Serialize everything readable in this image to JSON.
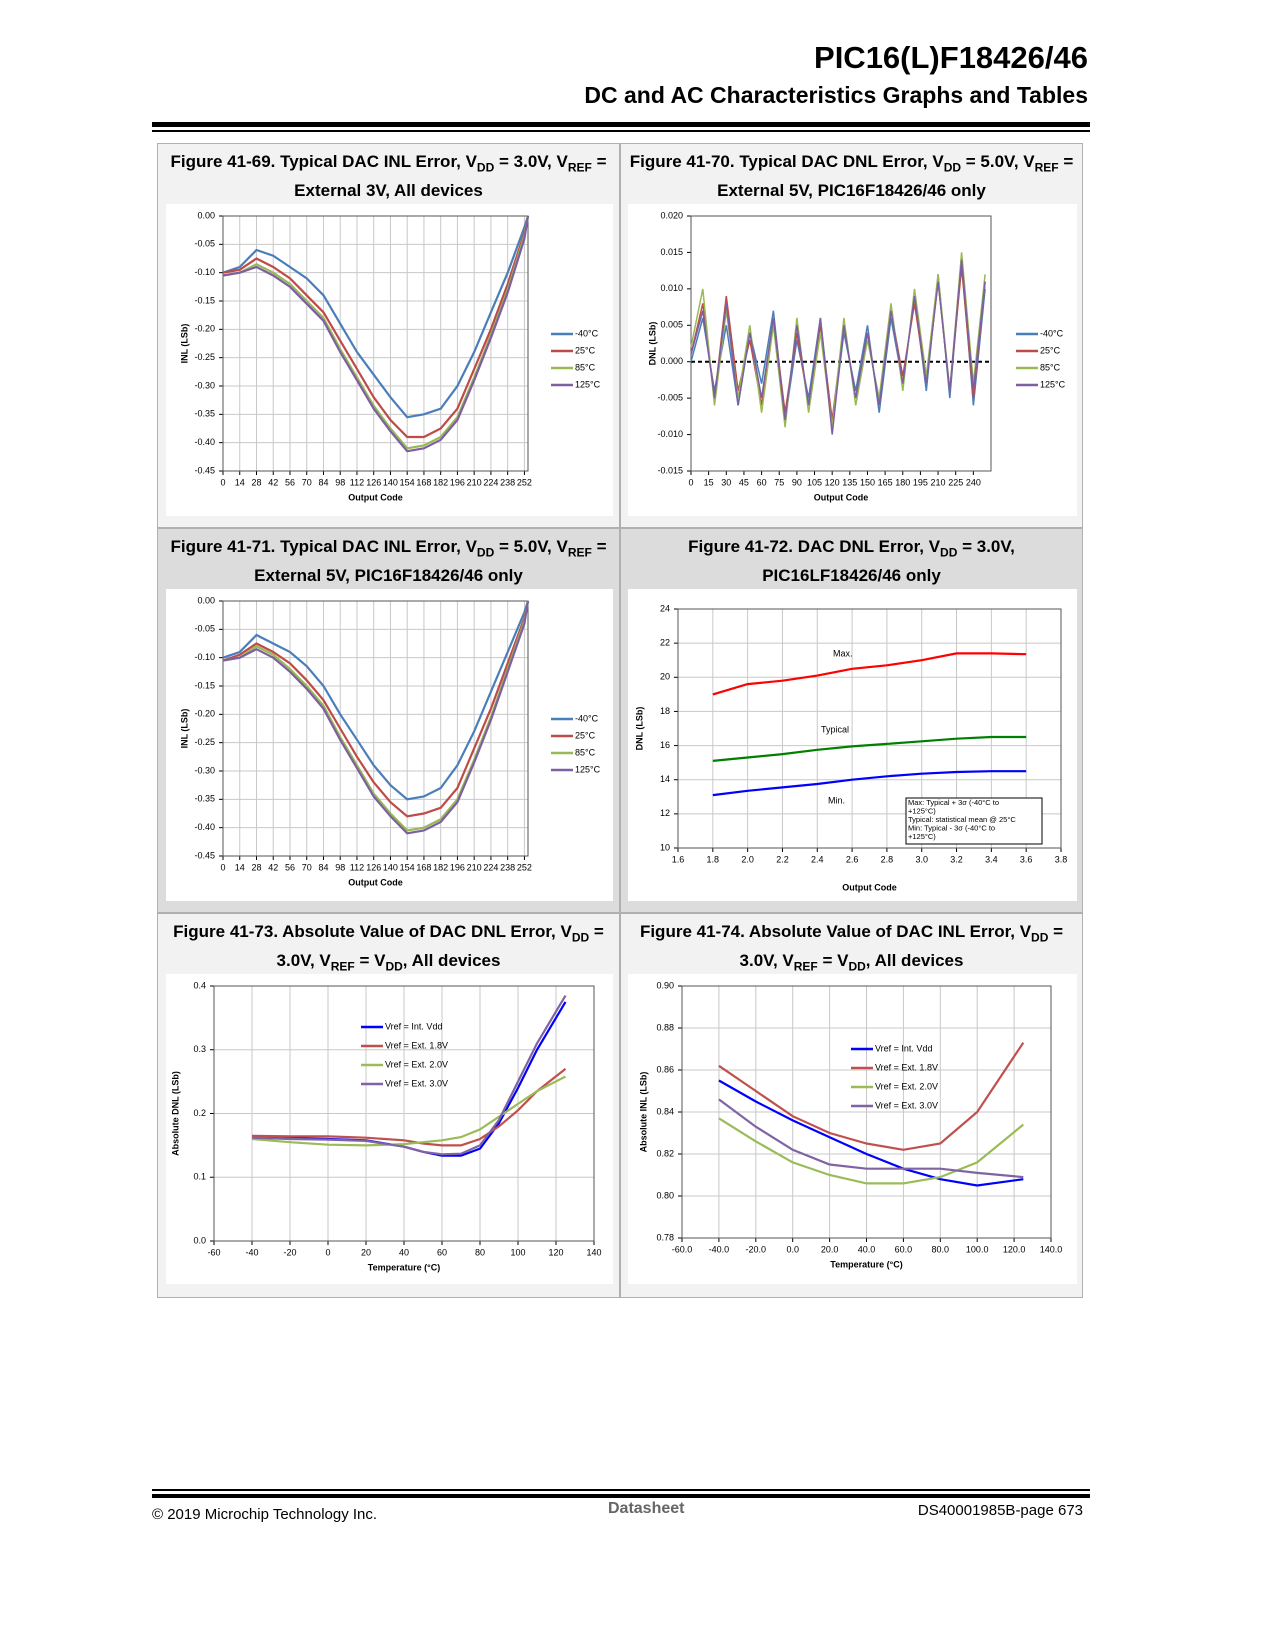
{
  "header": {
    "title": "PIC16(L)F18426/46",
    "subtitle": "DC and AC Characteristics Graphs and Tables"
  },
  "footer": {
    "copyright": "© 2019 Microchip Technology Inc.",
    "label": "Datasheet",
    "page": "DS40001985B-page 673"
  },
  "chart_data": [
    {
      "type": "line",
      "title": [
        "Figure 41-69. Typical DAC INL Error, V",
        "DD",
        " = 3.0V, V",
        "REF",
        " = External 3V, All devices"
      ],
      "x_label": "Output Code",
      "y_label": "INL (LSb)",
      "grid": true,
      "legend": "right",
      "xlim": [
        0,
        255
      ],
      "xticks": [
        0,
        14,
        28,
        42,
        56,
        70,
        84,
        98,
        112,
        126,
        140,
        154,
        168,
        182,
        196,
        210,
        224,
        238,
        252
      ],
      "ylim": [
        -0.45,
        0
      ],
      "yticks": [
        {
          "value": 0,
          "label": "0.00"
        },
        -0.05,
        {
          "value": -0.1,
          "label": "-0.10"
        },
        -0.15,
        {
          "value": -0.2,
          "label": "-0.20"
        },
        -0.25,
        {
          "value": -0.3,
          "label": "-0.30"
        },
        -0.35,
        {
          "value": -0.4,
          "label": "-0.40"
        },
        -0.45
      ],
      "x": [
        0,
        14,
        28,
        42,
        56,
        70,
        84,
        98,
        112,
        126,
        140,
        154,
        168,
        182,
        196,
        210,
        224,
        238,
        252,
        255
      ],
      "series": [
        {
          "name": "-40°C",
          "color": "#4a7ebb",
          "values": [
            -0.1,
            -0.09,
            -0.06,
            -0.07,
            -0.09,
            -0.11,
            -0.14,
            -0.19,
            -0.24,
            -0.28,
            -0.32,
            -0.355,
            -0.35,
            -0.34,
            -0.3,
            -0.24,
            -0.17,
            -0.1,
            -0.02,
            0
          ]
        },
        {
          "name": "25°C",
          "color": "#be4b48",
          "values": [
            -0.1,
            -0.095,
            -0.075,
            -0.09,
            -0.11,
            -0.14,
            -0.17,
            -0.22,
            -0.27,
            -0.32,
            -0.36,
            -0.39,
            -0.39,
            -0.375,
            -0.34,
            -0.27,
            -0.2,
            -0.12,
            -0.03,
            0
          ]
        },
        {
          "name": "85°C",
          "color": "#98b954",
          "values": [
            -0.105,
            -0.1,
            -0.085,
            -0.1,
            -0.12,
            -0.15,
            -0.18,
            -0.235,
            -0.285,
            -0.335,
            -0.375,
            -0.41,
            -0.405,
            -0.39,
            -0.355,
            -0.285,
            -0.21,
            -0.13,
            -0.035,
            0
          ]
        },
        {
          "name": "125°C",
          "color": "#7d60a0",
          "values": [
            -0.105,
            -0.1,
            -0.09,
            -0.105,
            -0.125,
            -0.155,
            -0.185,
            -0.24,
            -0.29,
            -0.34,
            -0.38,
            -0.415,
            -0.41,
            -0.395,
            -0.36,
            -0.29,
            -0.215,
            -0.135,
            -0.04,
            0
          ]
        }
      ]
    },
    {
      "type": "line",
      "title": [
        "Figure 41-70. Typical DAC DNL Error, V",
        "DD",
        " = 5.0V, V",
        "REF",
        " = External 5V, PIC16F18426/46 only"
      ],
      "x_label": "Output Code",
      "y_label": "DNL (LSb)",
      "grid": false,
      "legend": "right",
      "zero_line": true,
      "xlim": [
        0,
        255
      ],
      "xticks": [
        0,
        15,
        30,
        45,
        60,
        75,
        90,
        105,
        120,
        135,
        150,
        165,
        180,
        195,
        210,
        225,
        240
      ],
      "ylim": [
        -0.015,
        0.02
      ],
      "yticks": [
        -0.015,
        {
          "value": -0.01,
          "label": "-0.010"
        },
        -0.005,
        {
          "value": 0,
          "label": "0.000"
        },
        0.005,
        {
          "value": 0.01,
          "label": "0.010"
        },
        0.015,
        {
          "value": 0.02,
          "label": "0.020"
        }
      ],
      "x": [
        0,
        10,
        20,
        30,
        40,
        50,
        60,
        70,
        80,
        90,
        100,
        110,
        120,
        130,
        140,
        150,
        160,
        170,
        180,
        190,
        200,
        210,
        220,
        230,
        240,
        250
      ],
      "series": [
        {
          "name": "-40°C",
          "color": "#4a7ebb",
          "values": [
            0.0,
            0.006,
            -0.004,
            0.005,
            -0.006,
            0.004,
            -0.003,
            0.007,
            -0.008,
            0.003,
            -0.005,
            0.006,
            -0.009,
            0.004,
            -0.004,
            0.005,
            -0.007,
            0.006,
            -0.003,
            0.009,
            -0.004,
            0.012,
            -0.005,
            0.014,
            -0.006,
            0.01
          ]
        },
        {
          "name": "25°C",
          "color": "#be4b48",
          "values": [
            0.001,
            0.008,
            -0.005,
            0.009,
            -0.004,
            0.003,
            -0.006,
            0.006,
            -0.007,
            0.004,
            -0.006,
            0.005,
            -0.008,
            0.005,
            -0.005,
            0.004,
            -0.006,
            0.007,
            -0.002,
            0.008,
            -0.003,
            0.011,
            -0.004,
            0.013,
            -0.005,
            0.011
          ]
        },
        {
          "name": "85°C",
          "color": "#98b954",
          "values": [
            0.002,
            0.01,
            -0.006,
            0.007,
            -0.005,
            0.005,
            -0.007,
            0.005,
            -0.009,
            0.006,
            -0.007,
            0.004,
            -0.009,
            0.006,
            -0.006,
            0.003,
            -0.005,
            0.008,
            -0.004,
            0.01,
            -0.002,
            0.012,
            -0.004,
            0.015,
            -0.003,
            0.012
          ]
        },
        {
          "name": "125°C",
          "color": "#7d60a0",
          "values": [
            0.001,
            0.007,
            -0.005,
            0.008,
            -0.006,
            0.004,
            -0.005,
            0.006,
            -0.008,
            0.005,
            -0.006,
            0.006,
            -0.01,
            0.005,
            -0.005,
            0.004,
            -0.006,
            0.007,
            -0.003,
            0.009,
            -0.003,
            0.011,
            -0.004,
            0.014,
            -0.004,
            0.011
          ]
        }
      ]
    },
    {
      "type": "line",
      "title": [
        "Figure 41-71. Typical DAC INL Error, V",
        "DD",
        " = 5.0V, V",
        "REF",
        " = External 5V, PIC16F18426/46 only"
      ],
      "x_label": "Output Code",
      "y_label": "INL (LSb)",
      "grid": true,
      "legend": "right",
      "xlim": [
        0,
        255
      ],
      "xticks": [
        0,
        14,
        28,
        42,
        56,
        70,
        84,
        98,
        112,
        126,
        140,
        154,
        168,
        182,
        196,
        210,
        224,
        238,
        252
      ],
      "ylim": [
        -0.45,
        0
      ],
      "yticks": [
        {
          "value": 0,
          "label": "0.00"
        },
        -0.05,
        {
          "value": -0.1,
          "label": "-0.10"
        },
        -0.15,
        {
          "value": -0.2,
          "label": "-0.20"
        },
        -0.25,
        {
          "value": -0.3,
          "label": "-0.30"
        },
        -0.35,
        {
          "value": -0.4,
          "label": "-0.40"
        },
        -0.45
      ],
      "x": [
        0,
        14,
        28,
        42,
        56,
        70,
        84,
        98,
        112,
        126,
        140,
        154,
        168,
        182,
        196,
        210,
        224,
        238,
        252,
        255
      ],
      "series": [
        {
          "name": "-40°C",
          "color": "#4a7ebb",
          "values": [
            -0.1,
            -0.09,
            -0.06,
            -0.075,
            -0.09,
            -0.115,
            -0.15,
            -0.2,
            -0.245,
            -0.29,
            -0.325,
            -0.35,
            -0.345,
            -0.33,
            -0.29,
            -0.23,
            -0.16,
            -0.09,
            -0.02,
            0
          ]
        },
        {
          "name": "25°C",
          "color": "#be4b48",
          "values": [
            -0.105,
            -0.095,
            -0.075,
            -0.09,
            -0.11,
            -0.14,
            -0.175,
            -0.225,
            -0.275,
            -0.32,
            -0.355,
            -0.38,
            -0.375,
            -0.365,
            -0.33,
            -0.26,
            -0.19,
            -0.11,
            -0.03,
            0
          ]
        },
        {
          "name": "85°C",
          "color": "#98b954",
          "values": [
            -0.105,
            -0.1,
            -0.08,
            -0.095,
            -0.12,
            -0.15,
            -0.185,
            -0.24,
            -0.29,
            -0.34,
            -0.375,
            -0.405,
            -0.4,
            -0.385,
            -0.35,
            -0.28,
            -0.205,
            -0.12,
            -0.035,
            0
          ]
        },
        {
          "name": "125°C",
          "color": "#7d60a0",
          "values": [
            -0.105,
            -0.1,
            -0.085,
            -0.1,
            -0.125,
            -0.155,
            -0.19,
            -0.245,
            -0.295,
            -0.345,
            -0.38,
            -0.41,
            -0.405,
            -0.39,
            -0.355,
            -0.285,
            -0.21,
            -0.125,
            -0.04,
            0
          ]
        }
      ]
    },
    {
      "type": "line",
      "title": [
        "Figure 41-72. DAC DNL Error, V",
        "DD",
        " = 3.0V, PIC16LF18426/46 only"
      ],
      "x_label": "Output Code",
      "y_label": "DNL (LSb)",
      "grid": true,
      "legend": "none",
      "xlim": [
        1.6,
        3.8
      ],
      "xticks": [
        1.6,
        1.8,
        {
          "value": 2,
          "label": "2.0"
        },
        2.2,
        2.4,
        2.6,
        2.8,
        {
          "value": 3,
          "label": "3.0"
        },
        3.2,
        3.4,
        3.6,
        3.8
      ],
      "ylim": [
        10,
        24
      ],
      "yticks": [
        10,
        12,
        14,
        16,
        18,
        20,
        22,
        24
      ],
      "x": [
        1.8,
        2.0,
        2.2,
        2.4,
        2.6,
        2.8,
        3.0,
        3.2,
        3.4,
        3.6
      ],
      "annotations": [
        "Max.",
        "Typical",
        "Min."
      ],
      "note": [
        "Max: Typical + 3σ (-40°C to",
        "+125°C)",
        "Typical: statistical mean @ 25°C",
        "Min: Typical - 3σ (-40°C to",
        "+125°C)"
      ],
      "series": [
        {
          "name": "Max.",
          "color": "#ff0000",
          "values": [
            19.0,
            19.6,
            19.8,
            20.1,
            20.5,
            20.7,
            21.0,
            21.4,
            21.4,
            21.35
          ]
        },
        {
          "name": "Typical",
          "color": "#008000",
          "values": [
            15.1,
            15.3,
            15.5,
            15.75,
            15.95,
            16.1,
            16.25,
            16.4,
            16.5,
            16.5
          ]
        },
        {
          "name": "Min.",
          "color": "#0000ff",
          "values": [
            13.1,
            13.35,
            13.55,
            13.75,
            14.0,
            14.2,
            14.35,
            14.45,
            14.5,
            14.5
          ]
        }
      ]
    },
    {
      "type": "line",
      "title": [
        "Figure 41-73. Absolute Value of DAC DNL Error, V",
        "DD",
        " = 3.0V, V",
        "REF",
        " = V",
        "DD",
        ", All devices"
      ],
      "x_label": "Temperature (°C)",
      "y_label": "Absolute DNL (LSb)",
      "grid": true,
      "legend": "inside",
      "xlim": [
        -60,
        140
      ],
      "xticks": [
        -60,
        -40,
        -20,
        0,
        20,
        40,
        60,
        80,
        100,
        120,
        140
      ],
      "ylim": [
        0,
        0.4
      ],
      "yticks": [
        {
          "value": 0,
          "label": "0.0"
        },
        0.1,
        0.2,
        0.3,
        0.4
      ],
      "x": [
        -40,
        -20,
        0,
        20,
        40,
        50,
        60,
        70,
        80,
        90,
        100,
        110,
        125
      ],
      "series": [
        {
          "name": "Vref = Int. Vdd",
          "color": "#0000ff",
          "values": [
            0.162,
            0.161,
            0.16,
            0.158,
            0.148,
            0.14,
            0.134,
            0.134,
            0.145,
            0.185,
            0.24,
            0.3,
            0.375
          ]
        },
        {
          "name": "Vref = Ext. 1.8V",
          "color": "#c0504d",
          "values": [
            0.165,
            0.164,
            0.164,
            0.162,
            0.158,
            0.153,
            0.15,
            0.15,
            0.16,
            0.18,
            0.205,
            0.235,
            0.27
          ]
        },
        {
          "name": "Vref = Ext. 2.0V",
          "color": "#9bbb59",
          "values": [
            0.16,
            0.155,
            0.151,
            0.15,
            0.152,
            0.155,
            0.158,
            0.163,
            0.175,
            0.195,
            0.215,
            0.235,
            0.258
          ]
        },
        {
          "name": "Vref = Ext. 3.0V",
          "color": "#8064a2",
          "values": [
            0.162,
            0.16,
            0.159,
            0.157,
            0.148,
            0.14,
            0.136,
            0.137,
            0.15,
            0.19,
            0.25,
            0.31,
            0.385
          ]
        }
      ]
    },
    {
      "type": "line",
      "title": [
        "Figure 41-74. Absolute Value of DAC INL Error, V",
        "DD",
        " = 3.0V, V",
        "REF",
        " = V",
        "DD",
        ", All devices"
      ],
      "x_label": "Temperature (°C)",
      "y_label": "Absolute INL (LSb)",
      "grid": true,
      "legend": "inside",
      "xlim": [
        -60,
        140
      ],
      "xticks": [
        {
          "value": -60,
          "label": "-60.0"
        },
        {
          "value": -40,
          "label": "-40.0"
        },
        {
          "value": -20,
          "label": "-20.0"
        },
        {
          "value": 0,
          "label": "0.0"
        },
        {
          "value": 20,
          "label": "20.0"
        },
        {
          "value": 40,
          "label": "40.0"
        },
        {
          "value": 60,
          "label": "60.0"
        },
        {
          "value": 80,
          "label": "80.0"
        },
        {
          "value": 100,
          "label": "100.0"
        },
        {
          "value": 120,
          "label": "120.0"
        },
        {
          "value": 140,
          "label": "140.0"
        }
      ],
      "ylim": [
        0.78,
        0.9
      ],
      "yticks": [
        0.78,
        {
          "value": 0.8,
          "label": "0.80"
        },
        0.82,
        0.84,
        0.86,
        0.88,
        {
          "value": 0.9,
          "label": "0.90"
        }
      ],
      "x": [
        -40,
        -20,
        0,
        20,
        40,
        60,
        80,
        100,
        125
      ],
      "series": [
        {
          "name": "Vref = Int. Vdd",
          "color": "#0000ff",
          "values": [
            0.855,
            0.845,
            0.836,
            0.828,
            0.82,
            0.813,
            0.808,
            0.805,
            0.808
          ]
        },
        {
          "name": "Vref = Ext. 1.8V",
          "color": "#c0504d",
          "values": [
            0.862,
            0.85,
            0.838,
            0.83,
            0.825,
            0.822,
            0.825,
            0.84,
            0.873
          ]
        },
        {
          "name": "Vref = Ext. 2.0V",
          "color": "#9bbb59",
          "values": [
            0.837,
            0.826,
            0.816,
            0.81,
            0.806,
            0.806,
            0.809,
            0.816,
            0.834
          ]
        },
        {
          "name": "Vref = Ext. 3.0V",
          "color": "#8064a2",
          "values": [
            0.846,
            0.833,
            0.822,
            0.815,
            0.813,
            0.813,
            0.813,
            0.811,
            0.809
          ]
        }
      ]
    }
  ]
}
